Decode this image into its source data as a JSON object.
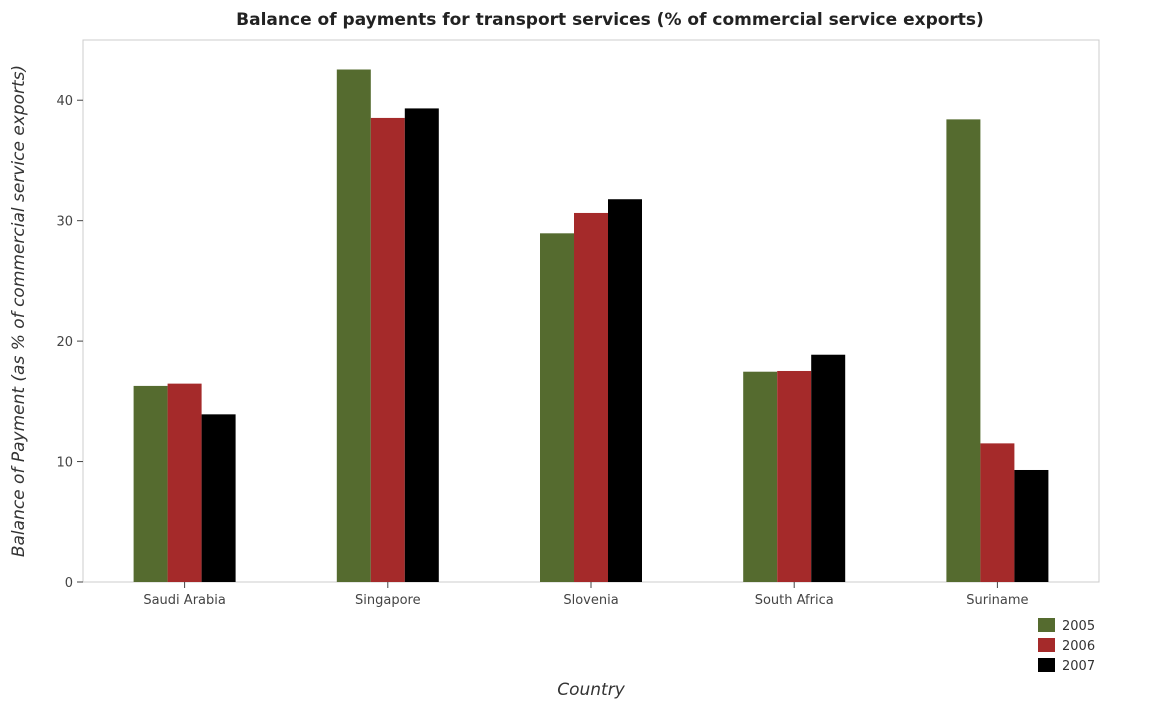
{
  "chart_data": {
    "type": "bar",
    "title": "Balance of payments for transport services (% of commercial service exports)",
    "xlabel": "Country",
    "ylabel": "Balance of Payment (as % of commercial service exports)",
    "categories": [
      "Saudi Arabia",
      "Singapore",
      "Slovenia",
      "South Africa",
      "Suriname"
    ],
    "ylim": [
      0,
      45
    ],
    "yticks": [
      0,
      10,
      20,
      30,
      40
    ],
    "grid": false,
    "legend_position": "bottom-right",
    "series": [
      {
        "name": "2005",
        "color": "#556b2f",
        "values": [
          16.28,
          42.55,
          28.95,
          17.46,
          38.41
        ]
      },
      {
        "name": "2006",
        "color": "#a52a2a",
        "values": [
          16.47,
          38.53,
          30.64,
          17.52,
          11.51
        ]
      },
      {
        "name": "2007",
        "color": "#000000",
        "values": [
          13.92,
          39.32,
          31.78,
          18.87,
          9.3
        ]
      }
    ]
  }
}
